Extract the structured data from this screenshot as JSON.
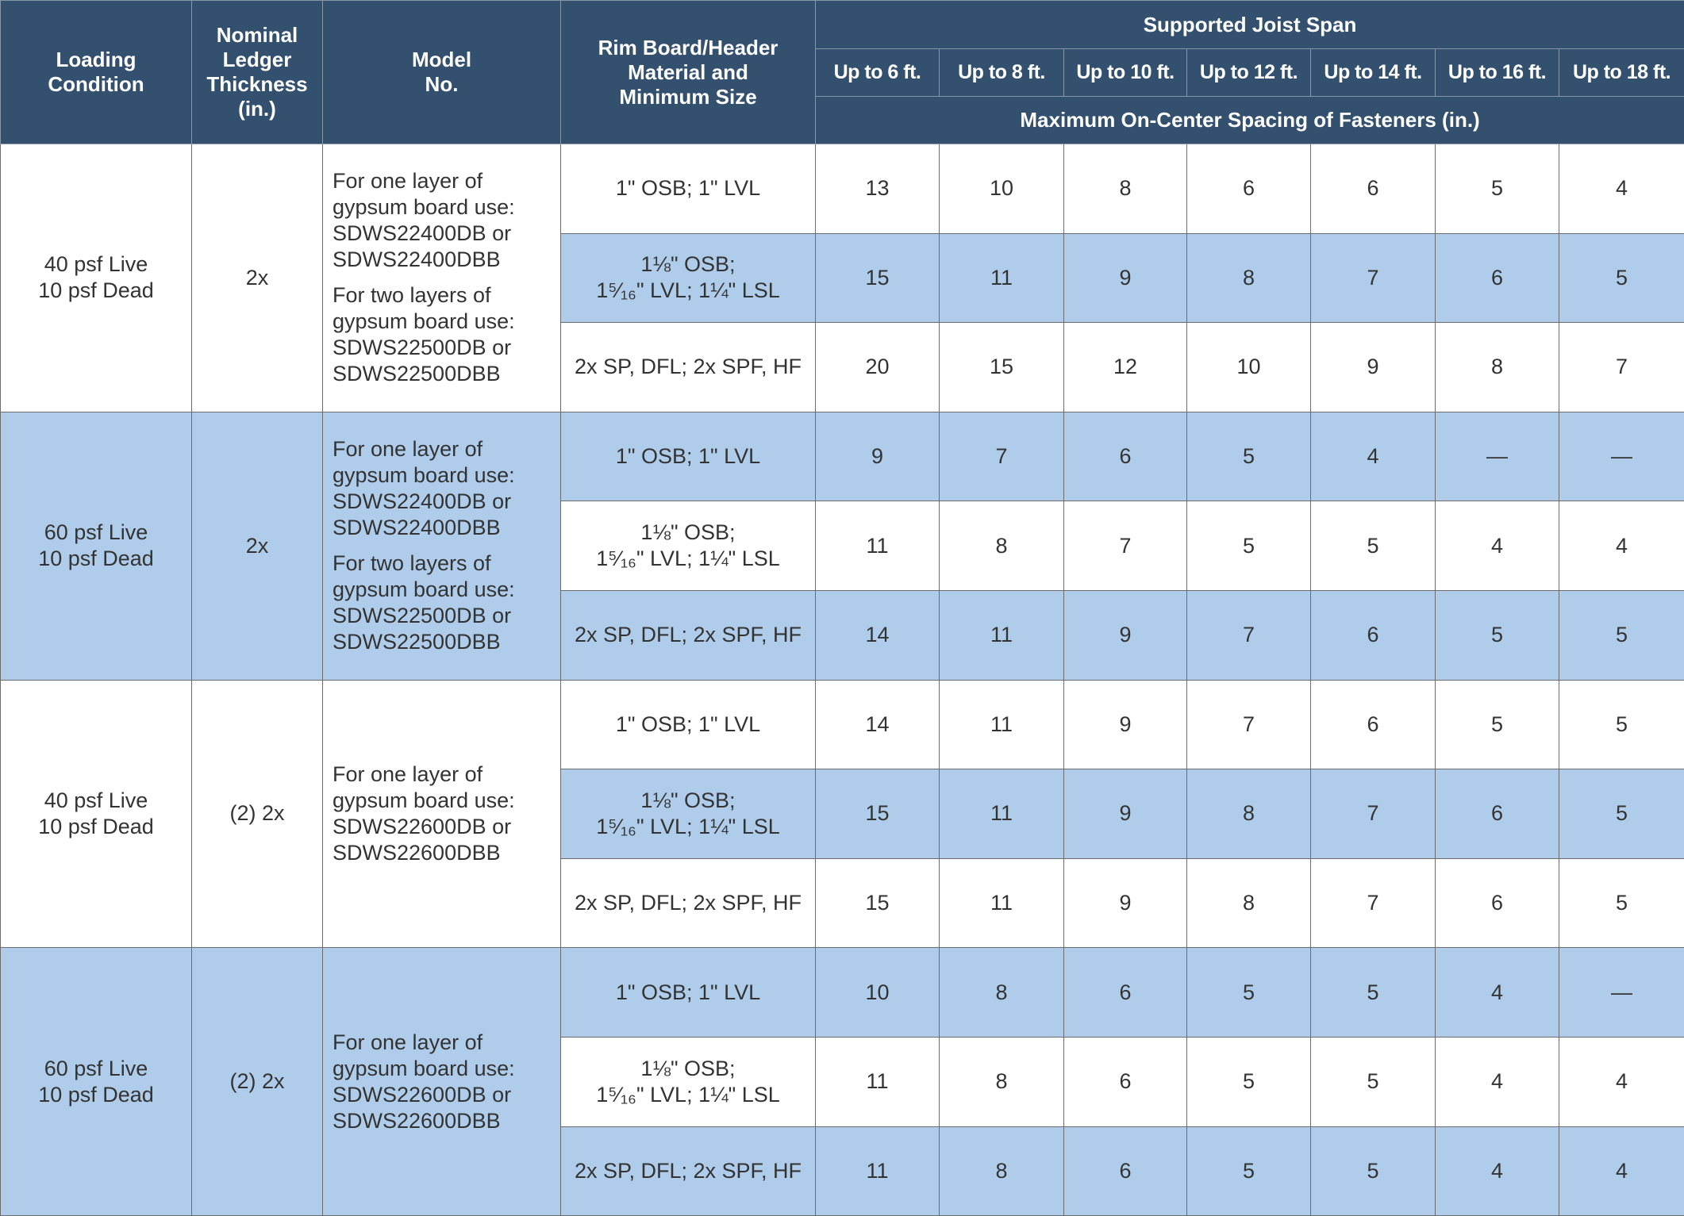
{
  "header": {
    "loading": "Loading\nCondition",
    "thickness": "Nominal\nLedger\nThickness\n(in.)",
    "model": "Model\nNo.",
    "material": "Rim Board/Header\nMaterial and\nMinimum Size",
    "span": "Supported Joist Span",
    "spans": [
      "Up to 6 ft.",
      "Up to 8 ft.",
      "Up to 10 ft.",
      "Up to 12 ft.",
      "Up to 14 ft.",
      "Up to 16 ft.",
      "Up to 18 ft."
    ],
    "spacing": "Maximum On-Center Spacing of Fasteners (in.)"
  },
  "groups": [
    {
      "loading": "40 psf Live\n10 psf Dead",
      "thickness": "2x",
      "model": [
        "For one layer of\ngypsum board use:\nSDWS22400DB or\nSDWS22400DBB",
        "For two layers of\ngypsum board use:\nSDWS22500DB or\nSDWS22500DBB"
      ],
      "rows": [
        {
          "material": "1\" OSB; 1\" LVL",
          "values": [
            13,
            10,
            8,
            6,
            6,
            5,
            4
          ]
        },
        {
          "material": "1⅛\" OSB;\n1⁵⁄₁₆\" LVL; 1¼\" LSL",
          "values": [
            15,
            11,
            9,
            8,
            7,
            6,
            5
          ]
        },
        {
          "material": "2x SP, DFL; 2x SPF, HF",
          "values": [
            20,
            15,
            12,
            10,
            9,
            8,
            7
          ]
        }
      ]
    },
    {
      "loading": "60 psf Live\n10 psf Dead",
      "thickness": "2x",
      "model": [
        "For one layer of\ngypsum board use:\nSDWS22400DB or\nSDWS22400DBB",
        "For two layers of\ngypsum board use:\nSDWS22500DB or\nSDWS22500DBB"
      ],
      "rows": [
        {
          "material": "1\" OSB; 1\" LVL",
          "values": [
            9,
            7,
            6,
            5,
            4,
            "—",
            "—"
          ]
        },
        {
          "material": "1⅛\" OSB;\n1⁵⁄₁₆\" LVL; 1¼\" LSL",
          "values": [
            11,
            8,
            7,
            5,
            5,
            4,
            4
          ]
        },
        {
          "material": "2x SP, DFL; 2x SPF, HF",
          "values": [
            14,
            11,
            9,
            7,
            6,
            5,
            5
          ]
        }
      ]
    },
    {
      "loading": "40 psf Live\n10 psf Dead",
      "thickness": "(2) 2x",
      "model": [
        "For one layer of\ngypsum board use:\nSDWS22600DB or\nSDWS22600DBB"
      ],
      "rows": [
        {
          "material": "1\" OSB; 1\" LVL",
          "values": [
            14,
            11,
            9,
            7,
            6,
            5,
            5
          ]
        },
        {
          "material": "1⅛\" OSB;\n1⁵⁄₁₆\" LVL; 1¼\" LSL",
          "values": [
            15,
            11,
            9,
            8,
            7,
            6,
            5
          ]
        },
        {
          "material": "2x SP, DFL; 2x SPF, HF",
          "values": [
            15,
            11,
            9,
            8,
            7,
            6,
            5
          ]
        }
      ]
    },
    {
      "loading": "60 psf Live\n10 psf Dead",
      "thickness": "(2) 2x",
      "model": [
        "For one layer of\ngypsum board use:\nSDWS22600DB or\nSDWS22600DBB"
      ],
      "rows": [
        {
          "material": "1\" OSB; 1\" LVL",
          "values": [
            10,
            8,
            6,
            5,
            5,
            4,
            "—"
          ]
        },
        {
          "material": "1⅛\" OSB;\n1⁵⁄₁₆\" LVL; 1¼\" LSL",
          "values": [
            11,
            8,
            6,
            5,
            5,
            4,
            4
          ]
        },
        {
          "material": "2x SP, DFL; 2x SPF, HF",
          "values": [
            11,
            8,
            6,
            5,
            5,
            4,
            4
          ]
        }
      ]
    }
  ]
}
